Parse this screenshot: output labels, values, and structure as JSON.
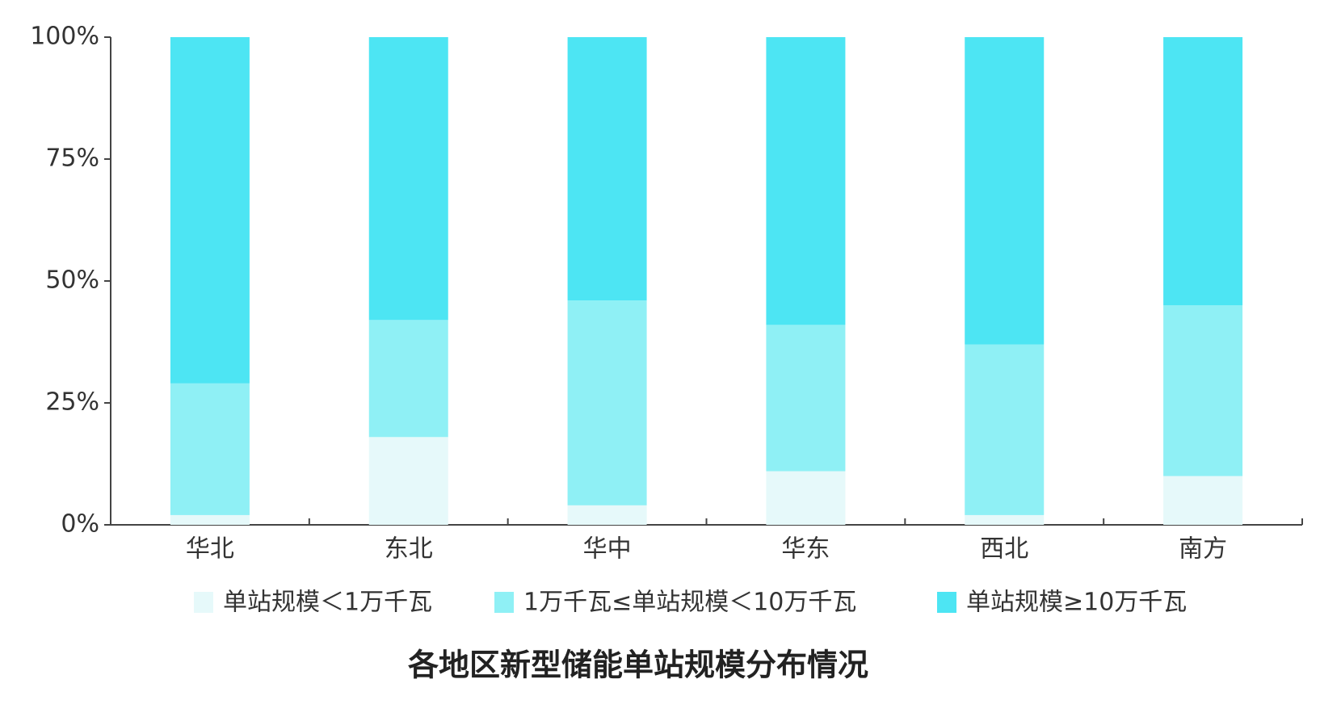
{
  "chart_data": {
    "type": "stacked_bar",
    "title": "各地区新型储能单站规模分布情况",
    "categories": [
      "华北",
      "东北",
      "华中",
      "华东",
      "西北",
      "南方"
    ],
    "series": [
      {
        "name": "单站规模＜1万千瓦",
        "color": "#e6f9fa",
        "values": [
          2,
          18,
          4,
          11,
          2,
          10
        ]
      },
      {
        "name": "1万千瓦≤单站规模＜10万千瓦",
        "color": "#8ff0f5",
        "values": [
          27,
          24,
          42,
          30,
          35,
          35
        ]
      },
      {
        "name": "单站规模≥10万千瓦",
        "color": "#4de5f3",
        "values": [
          71,
          58,
          54,
          59,
          63,
          55
        ]
      }
    ],
    "ylim": [
      0,
      100
    ],
    "yticks": [
      {
        "value": 0,
        "label": "0%"
      },
      {
        "value": 25,
        "label": "25%"
      },
      {
        "value": 50,
        "label": "50%"
      },
      {
        "value": 75,
        "label": "75%"
      },
      {
        "value": 100,
        "label": "100%"
      }
    ],
    "legend": "bottom"
  }
}
